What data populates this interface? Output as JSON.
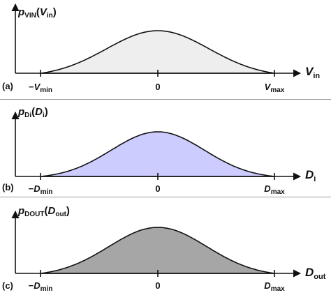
{
  "chart_data": [
    {
      "type": "area",
      "panel_label": "(a)",
      "ylabel": {
        "main": "p",
        "sub": "VIN",
        "open": "(",
        "arg": "V",
        "arg_sub": "in",
        "close": ")"
      },
      "xlabel": {
        "main": "V",
        "sub": "in"
      },
      "ticks": [
        {
          "value": -1,
          "prefix": "−",
          "main": "V",
          "sub": "min"
        },
        {
          "value": 0,
          "prefix": "",
          "main": "0",
          "sub": ""
        },
        {
          "value": 1,
          "prefix": "",
          "main": "V",
          "sub": "max"
        }
      ],
      "xlim": [
        -1.3,
        1.3
      ],
      "ylim": [
        0,
        1.2
      ],
      "curve": {
        "mean": 0,
        "sigma": 0.44,
        "peak": 1.0
      },
      "fill": "#eeeeee"
    },
    {
      "type": "area",
      "panel_label": "(b)",
      "ylabel": {
        "main": "p",
        "sub": "Di",
        "open": "(",
        "arg": "D",
        "arg_sub": "i",
        "close": ")"
      },
      "xlabel": {
        "main": "D",
        "sub": "i"
      },
      "ticks": [
        {
          "value": -1,
          "prefix": "−",
          "main": "D",
          "sub": "min"
        },
        {
          "value": 0,
          "prefix": "",
          "main": "0",
          "sub": ""
        },
        {
          "value": 1,
          "prefix": "",
          "main": "D",
          "sub": "max"
        }
      ],
      "xlim": [
        -1.3,
        1.3
      ],
      "ylim": [
        0,
        1.2
      ],
      "curve": {
        "mean": 0,
        "sigma": 0.4,
        "peak": 1.0
      },
      "fill": "#ccccff"
    },
    {
      "type": "area",
      "panel_label": "(c)",
      "ylabel": {
        "main": "p",
        "sub": "DOUT",
        "open": "(",
        "arg": "D",
        "arg_sub": "out",
        "close": ")"
      },
      "xlabel": {
        "main": "D",
        "sub": "out"
      },
      "ticks": [
        {
          "value": -1,
          "prefix": "−",
          "main": "D",
          "sub": "min"
        },
        {
          "value": 0,
          "prefix": "",
          "main": "0",
          "sub": ""
        },
        {
          "value": 1,
          "prefix": "",
          "main": "D",
          "sub": "max"
        }
      ],
      "xlim": [
        -1.3,
        1.3
      ],
      "ylim": [
        0,
        1.2
      ],
      "curve": {
        "mean": 0,
        "sigma": 0.42,
        "peak": 1.0
      },
      "fill": "#a6a6a6"
    }
  ]
}
